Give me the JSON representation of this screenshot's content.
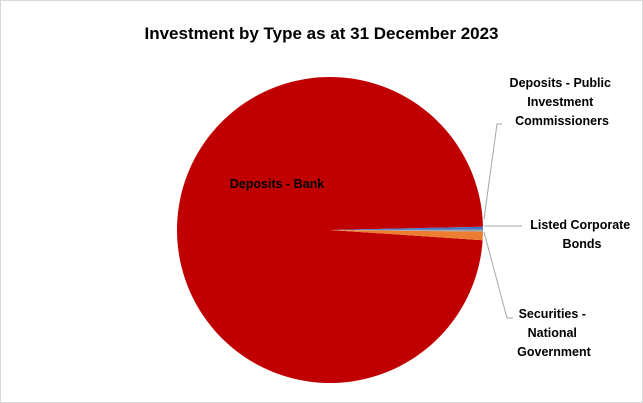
{
  "chart_data": {
    "type": "pie",
    "title": "Investment by Type as at 31 December 2023",
    "slices": [
      {
        "label": "Deposits - Bank",
        "value": 98.6,
        "color": "#c00000"
      },
      {
        "label": "Securities - National Government",
        "value": 0.9,
        "color": "#ed7d31"
      },
      {
        "label": "Listed Corporate Bonds",
        "value": 0.2,
        "color": "#a5a5a5"
      },
      {
        "label": "Deposits - Public Investment Commissioners",
        "value": 0.3,
        "color": "#4472c4"
      }
    ],
    "legend": "none",
    "data_labels": "category names"
  }
}
